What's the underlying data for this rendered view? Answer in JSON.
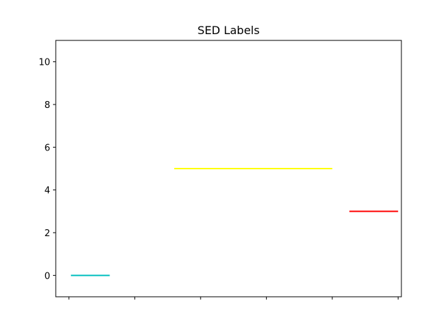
{
  "chart_data": {
    "type": "line",
    "title": "SED Labels",
    "xlabel": "",
    "ylabel": "",
    "xlim": [
      -0.2,
      5.05
    ],
    "ylim": [
      -1,
      11
    ],
    "x_ticks": [
      0,
      1,
      2,
      3,
      4,
      5
    ],
    "y_ticks": [
      0,
      2,
      4,
      6,
      8,
      10
    ],
    "y_tick_labels": [
      "0",
      "2",
      "4",
      "6",
      "8",
      "10"
    ],
    "grid": false,
    "segments": [
      {
        "x_start": 0.03,
        "x_end": 0.62,
        "y": 0,
        "color": "#00bfbf"
      },
      {
        "x_start": 1.6,
        "x_end": 4.0,
        "y": 5,
        "color": "#ffff00"
      },
      {
        "x_start": 4.26,
        "x_end": 5.0,
        "y": 3,
        "color": "#ff0000"
      }
    ]
  }
}
